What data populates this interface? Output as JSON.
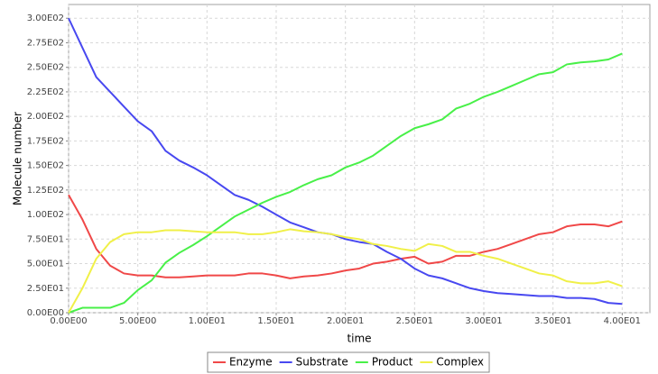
{
  "chart_data": {
    "type": "line",
    "x_label": "time",
    "y_label": "Molecule number",
    "x": [
      0,
      1,
      2,
      3,
      4,
      5,
      6,
      7,
      8,
      9,
      10,
      11,
      12,
      13,
      14,
      15,
      16,
      17,
      18,
      19,
      20,
      21,
      22,
      23,
      24,
      25,
      26,
      27,
      28,
      29,
      30,
      31,
      32,
      33,
      34,
      35,
      36,
      37,
      38,
      39,
      40
    ],
    "series": [
      {
        "name": "Enzyme",
        "color": "#f04848",
        "values": [
          120,
          95,
          65,
          48,
          40,
          38,
          38,
          36,
          36,
          37,
          38,
          38,
          38,
          40,
          40,
          38,
          35,
          37,
          38,
          40,
          43,
          45,
          50,
          52,
          55,
          57,
          50,
          52,
          58,
          58,
          62,
          65,
          70,
          75,
          80,
          82,
          88,
          90,
          90,
          88,
          93
        ]
      },
      {
        "name": "Substrate",
        "color": "#4848f0",
        "values": [
          300,
          270,
          240,
          225,
          210,
          195,
          185,
          165,
          155,
          148,
          140,
          130,
          120,
          115,
          108,
          100,
          92,
          87,
          82,
          80,
          75,
          72,
          70,
          62,
          55,
          45,
          38,
          35,
          30,
          25,
          22,
          20,
          19,
          18,
          17,
          17,
          15,
          15,
          14,
          10,
          9
        ]
      },
      {
        "name": "Product",
        "color": "#48f048",
        "values": [
          0,
          5,
          5,
          5,
          10,
          23,
          33,
          51,
          61,
          69,
          78,
          88,
          98,
          105,
          112,
          118,
          123,
          130,
          136,
          140,
          148,
          153,
          160,
          170,
          180,
          188,
          192,
          197,
          208,
          213,
          220,
          225,
          231,
          237,
          243,
          245,
          253,
          255,
          256,
          258,
          264
        ]
      },
      {
        "name": "Complex",
        "color": "#f0f048",
        "values": [
          0,
          25,
          55,
          72,
          80,
          82,
          82,
          84,
          84,
          83,
          82,
          82,
          82,
          80,
          80,
          82,
          85,
          83,
          82,
          80,
          77,
          75,
          70,
          68,
          65,
          63,
          70,
          68,
          62,
          62,
          58,
          55,
          50,
          45,
          40,
          38,
          32,
          30,
          30,
          32,
          27
        ]
      }
    ],
    "xlim": [
      0,
      42
    ],
    "ylim": [
      0,
      314
    ],
    "xticks": [
      {
        "value": 0,
        "label": "0.00E00"
      },
      {
        "value": 5,
        "label": "5.00E00"
      },
      {
        "value": 10,
        "label": "1.00E01"
      },
      {
        "value": 15,
        "label": "1.50E01"
      },
      {
        "value": 20,
        "label": "2.00E01"
      },
      {
        "value": 25,
        "label": "2.50E01"
      },
      {
        "value": 30,
        "label": "3.00E01"
      },
      {
        "value": 35,
        "label": "3.50E01"
      },
      {
        "value": 40,
        "label": "4.00E01"
      }
    ],
    "yticks": [
      {
        "value": 0,
        "label": "0.00E00"
      },
      {
        "value": 25,
        "label": "2.50E01"
      },
      {
        "value": 50,
        "label": "5.00E01"
      },
      {
        "value": 75,
        "label": "7.50E01"
      },
      {
        "value": 100,
        "label": "1.00E02"
      },
      {
        "value": 125,
        "label": "1.25E02"
      },
      {
        "value": 150,
        "label": "1.50E02"
      },
      {
        "value": 175,
        "label": "1.75E02"
      },
      {
        "value": 200,
        "label": "2.00E02"
      },
      {
        "value": 225,
        "label": "2.25E02"
      },
      {
        "value": 250,
        "label": "2.50E02"
      },
      {
        "value": 275,
        "label": "2.75E02"
      },
      {
        "value": 300,
        "label": "3.00E02"
      }
    ],
    "grid": true,
    "legend_position": "bottom"
  }
}
